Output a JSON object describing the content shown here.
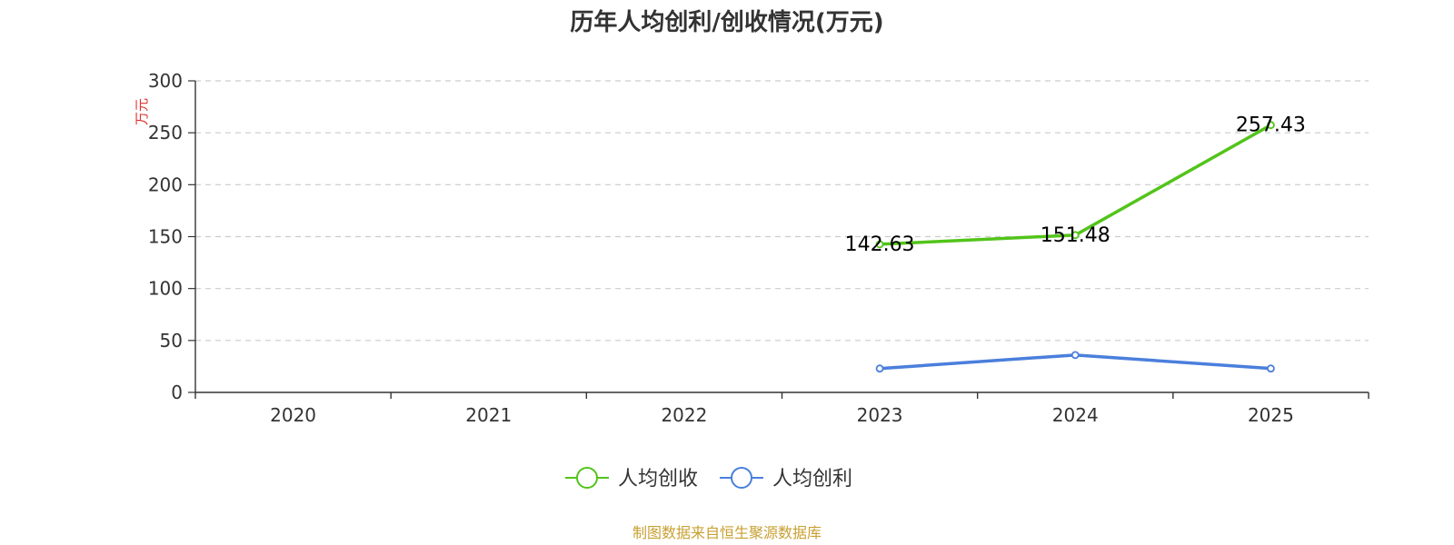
{
  "chart_data": {
    "type": "line",
    "title": "历年人均创利/创收情况(万元)",
    "ylabel": "万元",
    "xlabel": "",
    "categories": [
      "2020",
      "2021",
      "2022",
      "2023",
      "2024",
      "2025"
    ],
    "ylim": [
      0,
      300
    ],
    "yticks": [
      0,
      50,
      100,
      150,
      200,
      250,
      300
    ],
    "grid": true,
    "legend_position": "bottom-center",
    "series": [
      {
        "name": "人均创收",
        "color": "#52c41a",
        "values": [
          null,
          null,
          null,
          142.63,
          151.48,
          257.43
        ],
        "labels": [
          "",
          "",
          "",
          "142.63",
          "151.48",
          "257.43"
        ]
      },
      {
        "name": "人均创利",
        "color": "#4a7fdc",
        "values": [
          null,
          null,
          null,
          23,
          36,
          23
        ],
        "labels": [
          "",
          "",
          "",
          "",
          "",
          ""
        ]
      }
    ]
  },
  "footer": {
    "source": "制图数据来自恒生聚源数据库",
    "color": "#c8a032"
  },
  "style": {
    "title_color": "#333333",
    "ylabel_color": "#e03030",
    "axis_color": "#333333",
    "grid_color": "#cccccc"
  }
}
